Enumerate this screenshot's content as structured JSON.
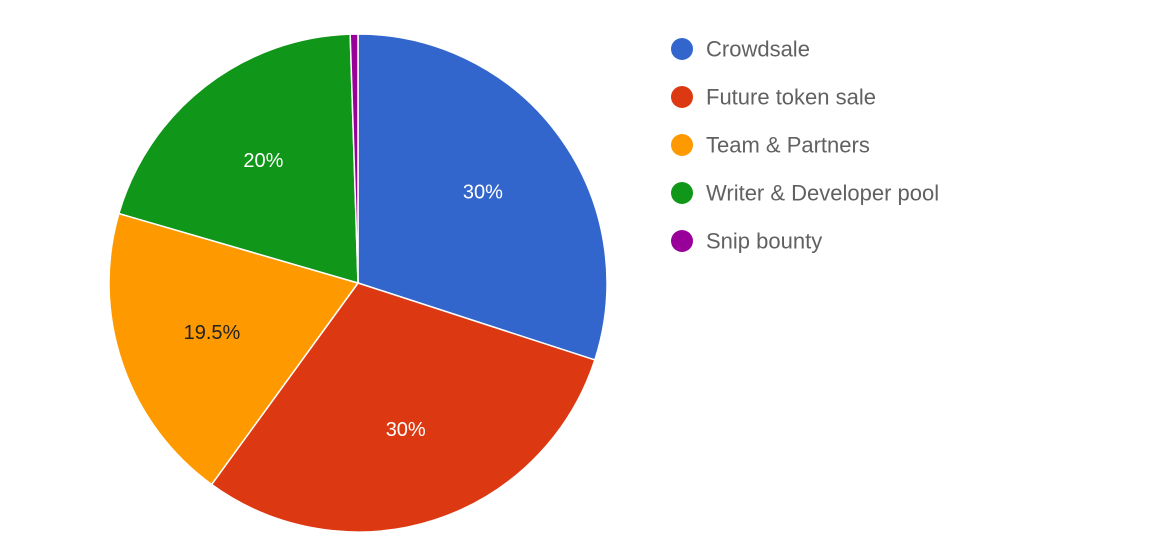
{
  "chart_data": {
    "type": "pie",
    "title": "",
    "slices": [
      {
        "label": "Crowdsale",
        "value": 30,
        "value_label": "30%",
        "color": "#3366CC",
        "label_color": "#ffffff"
      },
      {
        "label": "Future token sale",
        "value": 30,
        "value_label": "30%",
        "color": "#DC3912",
        "label_color": "#ffffff"
      },
      {
        "label": "Team & Partners",
        "value": 19.5,
        "value_label": "19.5%",
        "color": "#FF9900",
        "label_color": "#222222"
      },
      {
        "label": "Writer & Developer pool",
        "value": 20,
        "value_label": "20%",
        "color": "#109618",
        "label_color": "#ffffff"
      },
      {
        "label": "Snip bounty",
        "value": 0.5,
        "value_label": "",
        "color": "#990099",
        "label_color": "#ffffff"
      }
    ],
    "legend_position": "right",
    "start_angle": "top",
    "direction": "clockwise"
  }
}
